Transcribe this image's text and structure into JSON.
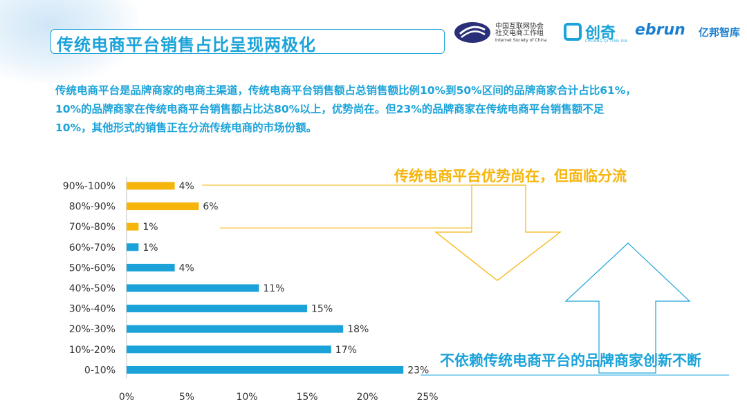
{
  "title": "传统电商平台销售占比呈现两极化",
  "description_lines": [
    "传统电商平台是品牌商家的电商主渠道，传统电商平台销售额占总销售额比例10%到50%区间的品牌商家合计占比61%，",
    "10%的品牌商家在传统电商平台销售额占比达80%以上，优势尚在。但23%的品牌商家在传统电商平台销售额不足",
    "10%，其他形式的销售正在分流传统电商的市场份额。"
  ],
  "logos": {
    "isc_cn_line1": "中国互联网协会",
    "isc_cn_line2": "社交电商工作组",
    "isc_en": "Internet Society of China",
    "chuangqi": "创奇",
    "chuangqi_sub": "CHUANG QI TIAN XIA",
    "ebrun": "ebrun",
    "ebrun_cn": "亿邦智库"
  },
  "annotations": {
    "top": "传统电商平台优势尚在，但面临分流",
    "bottom": "不依赖传统电商平台的品牌商家创新不断"
  },
  "colors": {
    "accent": "#1ba3d9",
    "highlight": "#f5b50b"
  },
  "chart_data": {
    "type": "bar",
    "orientation": "horizontal",
    "categories": [
      "90%-100%",
      "80%-90%",
      "70%-80%",
      "60%-70%",
      "50%-60%",
      "40%-50%",
      "30%-40%",
      "20%-30%",
      "10%-20%",
      "0-10%"
    ],
    "values": [
      4,
      6,
      1,
      1,
      4,
      11,
      15,
      18,
      17,
      23
    ],
    "value_labels": [
      "4%",
      "6%",
      "1%",
      "1%",
      "4%",
      "11%",
      "15%",
      "18%",
      "17%",
      "23%"
    ],
    "highlighted_categories": [
      "90%-100%",
      "80%-90%",
      "70%-80%"
    ],
    "xlim": [
      0,
      25
    ],
    "xticks": [
      "0%",
      "5%",
      "10%",
      "15%",
      "20%",
      "25%"
    ],
    "grid": false,
    "legend": "none"
  }
}
